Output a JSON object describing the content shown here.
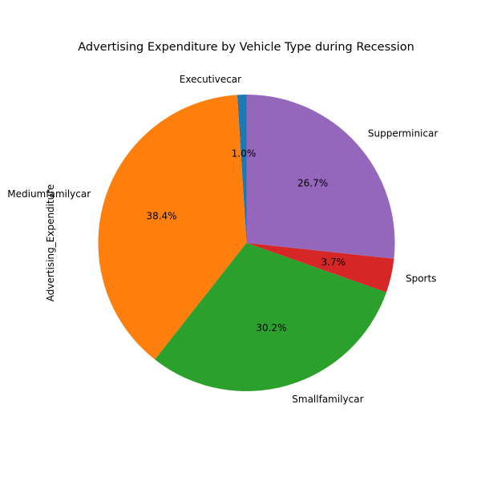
{
  "chart_data": {
    "type": "pie",
    "title": "Advertising Expenditure by Vehicle Type during Recession",
    "ylabel": "Advertising_Expenditure",
    "categories": [
      "Executivecar",
      "Mediumfamilycar",
      "Smallfamilycar",
      "Sports",
      "Supperminicar"
    ],
    "values": [
      1.0,
      38.4,
      30.2,
      3.7,
      26.7
    ],
    "value_labels": [
      "1.0%",
      "38.4%",
      "30.2%",
      "3.7%",
      "26.7%"
    ],
    "colors": [
      "#1f77b4",
      "#ff7f0e",
      "#2ca02c",
      "#d62728",
      "#9467bd"
    ],
    "start_angle_deg": 90,
    "direction": "counterclockwise"
  }
}
